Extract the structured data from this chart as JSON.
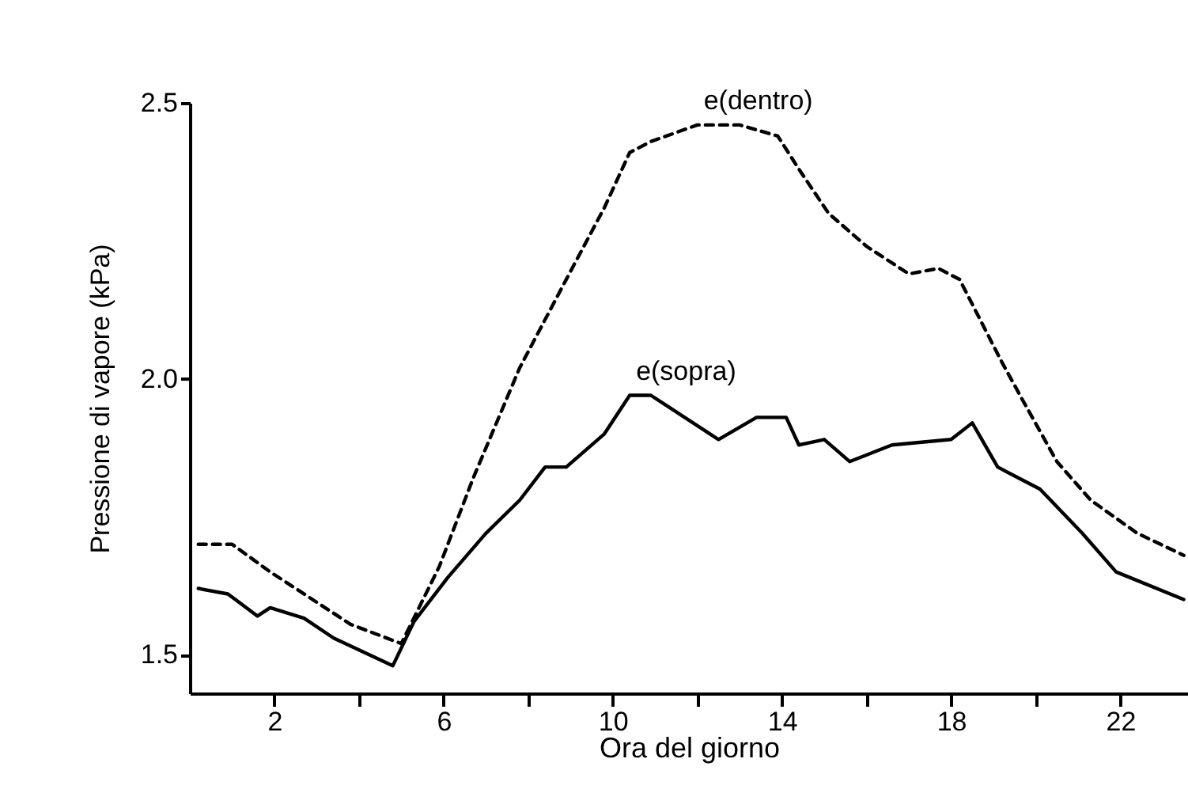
{
  "chart_data": {
    "type": "line",
    "xlabel": "Ora del giorno",
    "ylabel": "Pressione di vapore (kPa)",
    "xlim": [
      0,
      23.6
    ],
    "ylim": [
      1.43,
      2.5
    ],
    "xticks": [
      2,
      {
        "value": 4,
        "label": null
      },
      6,
      {
        "value": 8,
        "label": null
      },
      10,
      {
        "value": 12,
        "label": null
      },
      14,
      {
        "value": 16,
        "label": null
      },
      18,
      {
        "value": 20,
        "label": null
      },
      22
    ],
    "yticks": [
      {
        "value": 1.5,
        "label": "1.5"
      },
      {
        "value": 2,
        "label": "2.0"
      },
      {
        "value": 2.5,
        "label": "2.5"
      }
    ],
    "series": [
      {
        "name": "e(dentro)",
        "color": "#000000",
        "line_style": "dashed",
        "x": [
          0.2,
          1.0,
          1.9,
          2.9,
          3.8,
          5.0,
          5.9,
          6.7,
          7.8,
          8.9,
          9.8,
          10.4,
          10.9,
          12.0,
          13.0,
          13.9,
          14.4,
          15.1,
          16.0,
          17.0,
          17.7,
          18.2,
          18.6,
          19.2,
          19.7,
          20.5,
          21.3,
          22.4,
          23.5
        ],
        "values": [
          1.7,
          1.7,
          1.65,
          1.6,
          1.555,
          1.52,
          1.66,
          1.82,
          2.02,
          2.18,
          2.31,
          2.41,
          2.43,
          2.46,
          2.46,
          2.44,
          2.38,
          2.3,
          2.24,
          2.19,
          2.2,
          2.18,
          2.12,
          2.03,
          1.96,
          1.85,
          1.78,
          1.72,
          1.68
        ]
      },
      {
        "name": "e(sopra)",
        "color": "#000000",
        "line_style": "solid",
        "x": [
          0.2,
          0.9,
          1.6,
          1.9,
          2.7,
          3.4,
          4.8,
          5.3,
          6.1,
          7.0,
          7.8,
          8.4,
          8.9,
          9.8,
          10.4,
          10.9,
          12.5,
          13.4,
          14.1,
          14.4,
          15.0,
          15.6,
          16.6,
          18.0,
          18.5,
          19.1,
          20.1,
          21.1,
          21.9,
          23.5
        ],
        "values": [
          1.62,
          1.61,
          1.57,
          1.585,
          1.566,
          1.53,
          1.48,
          1.56,
          1.64,
          1.72,
          1.78,
          1.84,
          1.84,
          1.9,
          1.97,
          1.97,
          1.89,
          1.93,
          1.93,
          1.88,
          1.89,
          1.85,
          1.88,
          1.89,
          1.92,
          1.84,
          1.8,
          1.72,
          1.65,
          1.6
        ]
      }
    ]
  }
}
